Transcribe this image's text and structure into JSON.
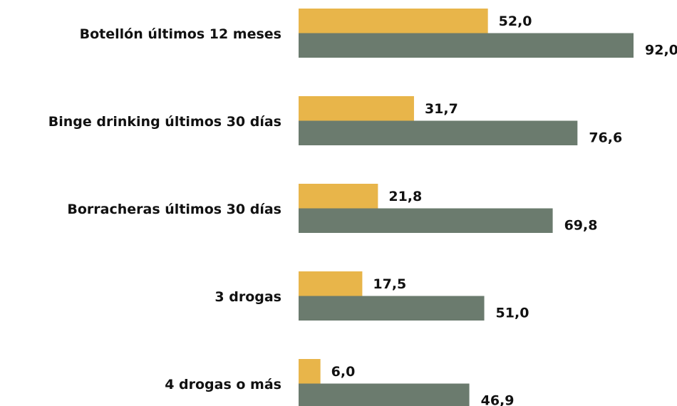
{
  "chart_data": {
    "type": "bar",
    "orientation": "horizontal",
    "categories": [
      "Botellón últimos 12 meses",
      "Binge drinking últimos 30 días",
      "Borracheras últimos 30 días",
      "3 drogas",
      "4 drogas o más"
    ],
    "series": [
      {
        "color": "#e8b54a",
        "values": [
          52.0,
          31.7,
          21.8,
          17.5,
          6.0
        ],
        "value_labels": [
          "52,0",
          "31,7",
          "21,8",
          "17,5",
          "6,0"
        ]
      },
      {
        "color": "#6b7b6e",
        "values": [
          92.0,
          76.6,
          69.8,
          51.0,
          46.9
        ],
        "value_labels": [
          "92,0",
          "76,6",
          "69,8",
          "51,0",
          "46,9"
        ]
      }
    ]
  }
}
